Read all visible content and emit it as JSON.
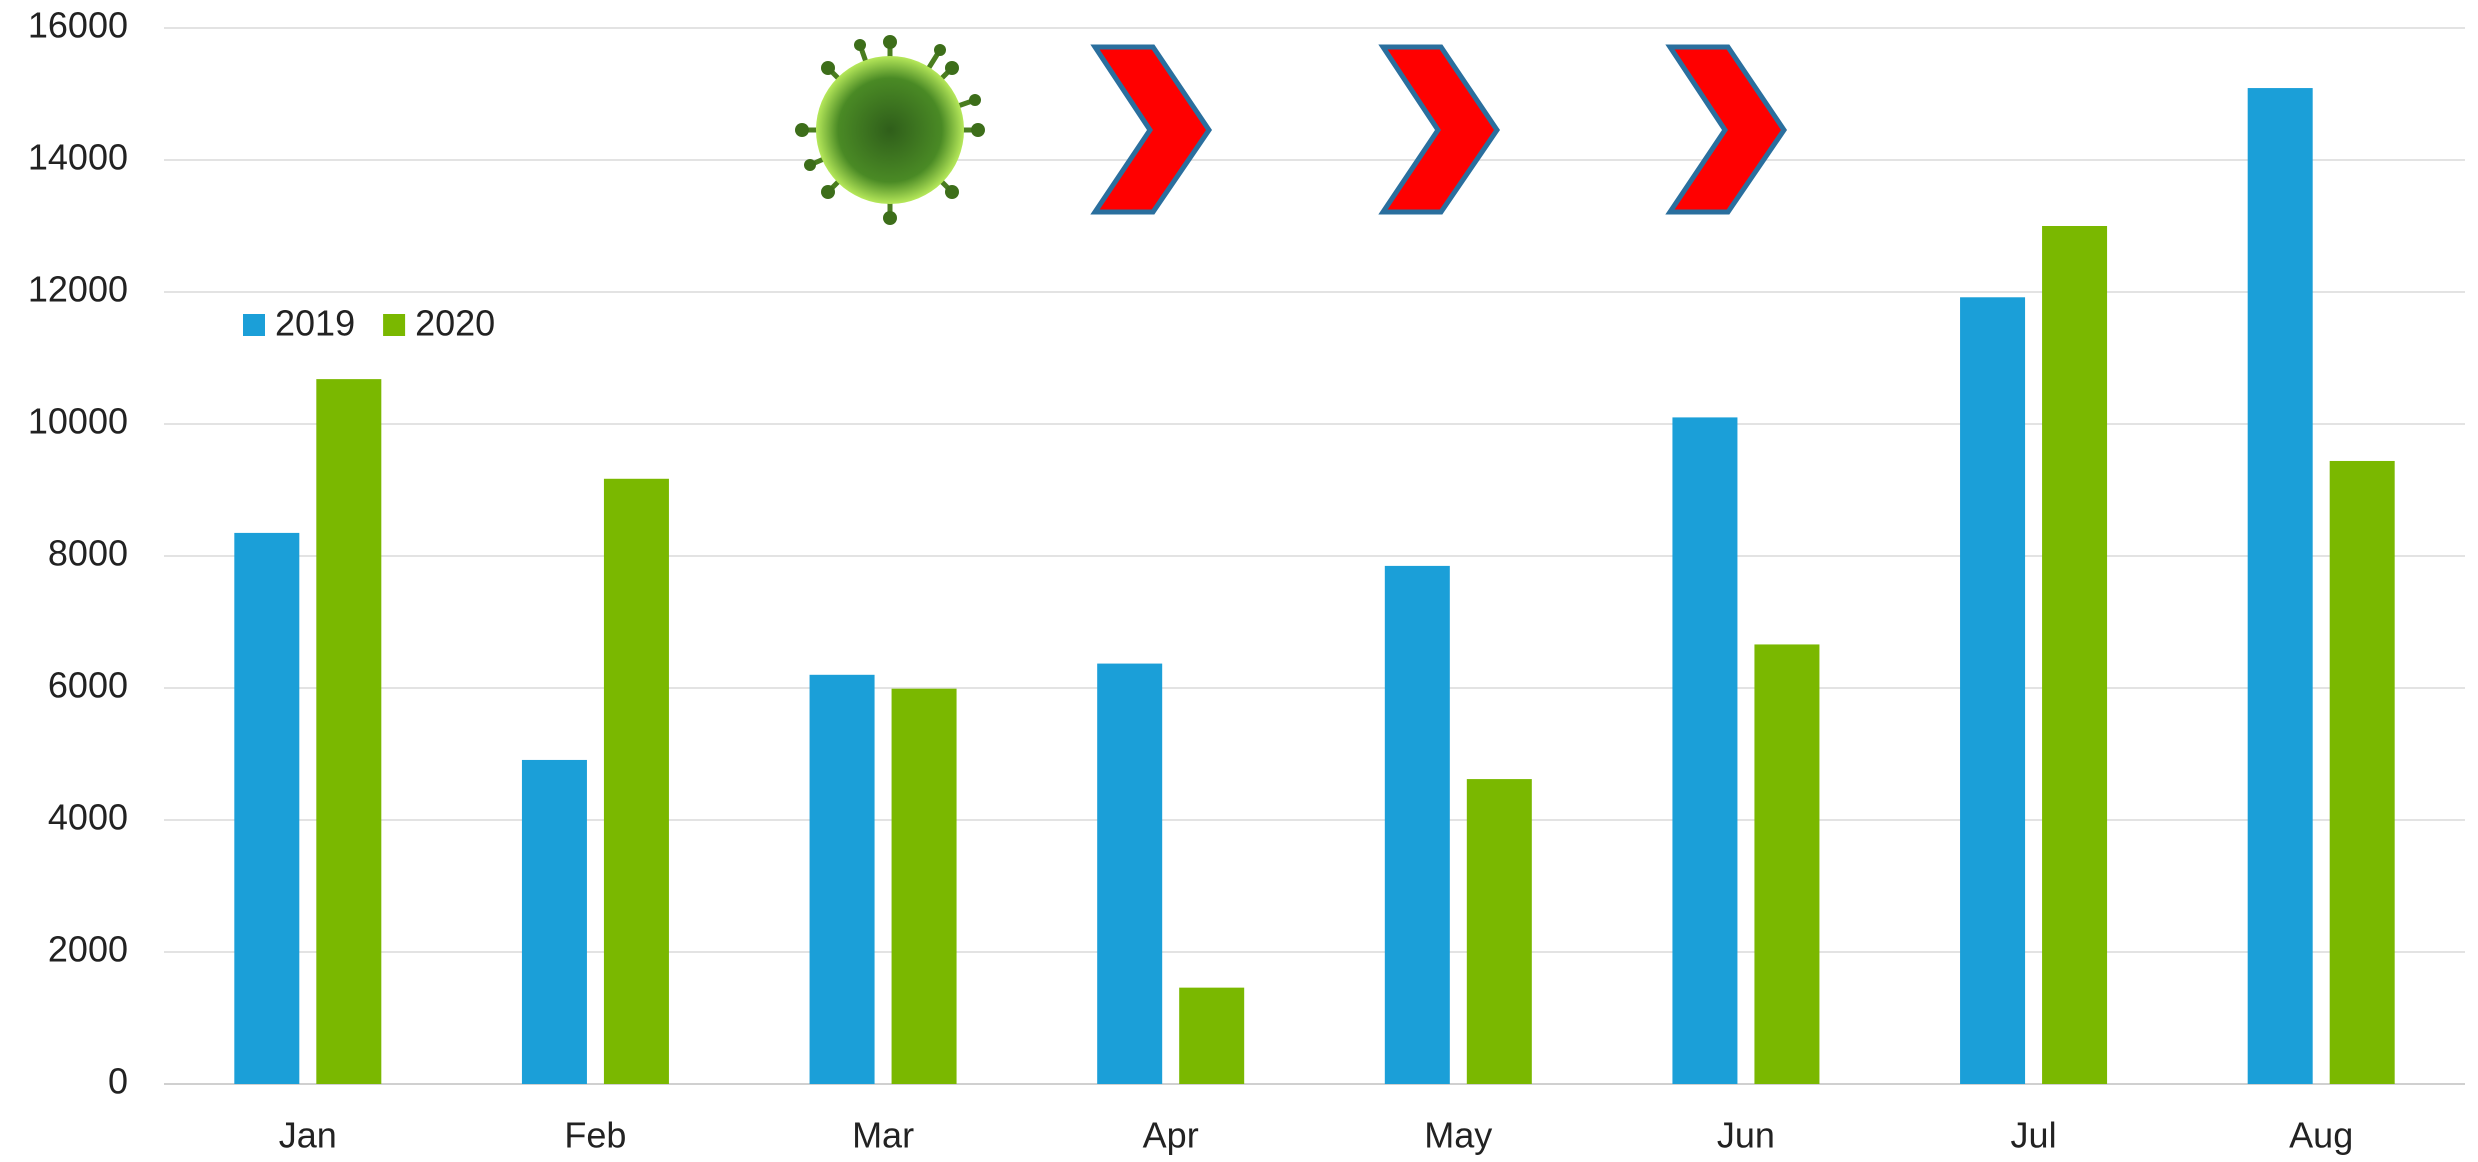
{
  "chart_data": {
    "type": "bar",
    "categories": [
      "Jan",
      "Feb",
      "Mar",
      "Apr",
      "May",
      "Jun",
      "Jul",
      "Aug"
    ],
    "series": [
      {
        "name": "2019",
        "color": "#1b9fd8",
        "values": [
          8350,
          4910,
          6200,
          6370,
          7850,
          10100,
          11920,
          15090
        ]
      },
      {
        "name": "2020",
        "color": "#7ab800",
        "values": [
          10680,
          9170,
          5990,
          1460,
          4620,
          6660,
          13000,
          9440
        ]
      }
    ],
    "ylim": [
      0,
      16000
    ],
    "yticks": [
      0,
      2000,
      4000,
      6000,
      8000,
      10000,
      12000,
      14000,
      16000
    ],
    "grid": true,
    "legend": "top-left"
  }
}
